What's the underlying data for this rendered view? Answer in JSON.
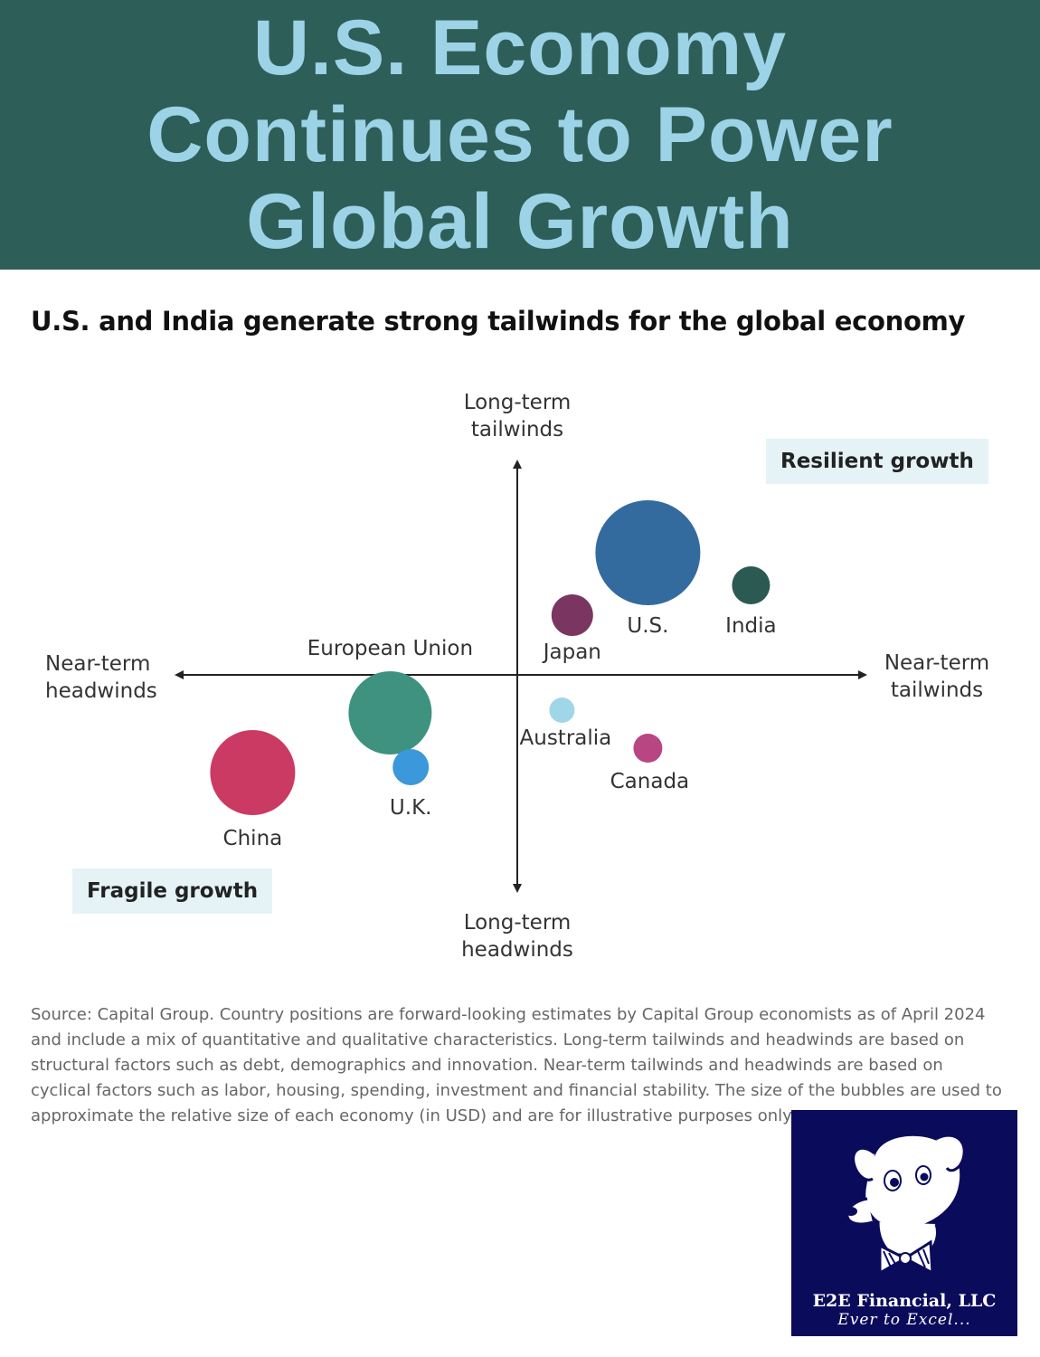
{
  "banner": {
    "lines": [
      "U.S. Economy",
      "Continues to Power",
      "Global Growth"
    ]
  },
  "subtitle": "U.S. and India generate strong tailwinds for the global economy",
  "chart_data": {
    "type": "scatter",
    "title": "U.S. and India generate strong tailwinds for the global economy",
    "axes": {
      "top": "Long-term\ntailwinds",
      "bottom": "Long-term\nheadwinds",
      "left": "Near-term\nheadwinds",
      "right": "Near-term\ntailwinds"
    },
    "xlim": [
      -10,
      10
    ],
    "ylim": [
      -10,
      10
    ],
    "quadrant_labels": {
      "top_right": "Resilient growth",
      "bottom_left": "Fragile growth"
    },
    "points": [
      {
        "label": "U.S.",
        "x": 3.8,
        "y": 4.5,
        "size": 58,
        "color": "#336b9f"
      },
      {
        "label": "India",
        "x": 6.8,
        "y": 3.3,
        "size": 21,
        "color": "#2b5a52"
      },
      {
        "label": "Japan",
        "x": 1.6,
        "y": 2.2,
        "size": 23,
        "color": "#7a3560"
      },
      {
        "label": "European Union",
        "x": -3.7,
        "y": -1.4,
        "size": 46,
        "color": "#3f927f"
      },
      {
        "label": "U.K.",
        "x": -3.1,
        "y": -3.4,
        "size": 20,
        "color": "#3b98da"
      },
      {
        "label": "China",
        "x": -7.7,
        "y": -3.6,
        "size": 47,
        "color": "#cb3a62"
      },
      {
        "label": "Australia",
        "x": 1.3,
        "y": -1.3,
        "size": 14,
        "color": "#9fd6e8"
      },
      {
        "label": "Canada",
        "x": 3.8,
        "y": -2.7,
        "size": 16,
        "color": "#b84682"
      }
    ]
  },
  "source": "Source: Capital Group. Country positions are forward-looking estimates by Capital Group economists as of April 2024 and include a mix of quantitative and qualitative characteristics. Long-term tailwinds and headwinds are based on structural factors such as debt, demographics and innovation. Near-term tailwinds and headwinds are based on cyclical factors such as labor, housing, spending, investment and financial stability. The size of the bubbles are used to approximate the relative size of each economy (in USD) and are for illustrative purposes only.",
  "logo": {
    "name": "E2E Financial, LLC",
    "tagline": "Ever to Excel...",
    "icon": "dog-with-bowtie-icon",
    "background": "#0b0b5c"
  }
}
